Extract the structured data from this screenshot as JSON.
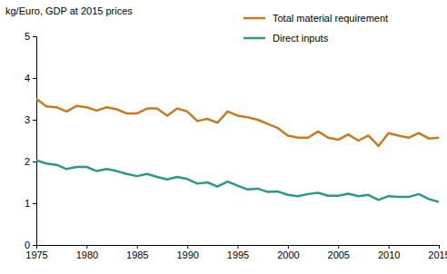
{
  "chart_data": {
    "type": "line",
    "ylabel": "kg/Euro, GDP at 2015 prices",
    "x": [
      1975,
      1976,
      1977,
      1978,
      1979,
      1980,
      1981,
      1982,
      1983,
      1984,
      1985,
      1986,
      1987,
      1988,
      1989,
      1990,
      1991,
      1992,
      1993,
      1994,
      1995,
      1996,
      1997,
      1998,
      1999,
      2000,
      2001,
      2002,
      2003,
      2004,
      2005,
      2006,
      2007,
      2008,
      2009,
      2010,
      2011,
      2012,
      2013,
      2014,
      2015
    ],
    "series": [
      {
        "name": "Total material requirement",
        "color": "#c97a1e",
        "values": [
          3.5,
          3.32,
          3.3,
          3.2,
          3.33,
          3.3,
          3.22,
          3.3,
          3.25,
          3.15,
          3.15,
          3.27,
          3.27,
          3.1,
          3.27,
          3.2,
          2.97,
          3.02,
          2.93,
          3.2,
          3.1,
          3.06,
          3.0,
          2.9,
          2.8,
          2.62,
          2.57,
          2.57,
          2.72,
          2.57,
          2.52,
          2.65,
          2.5,
          2.62,
          2.37,
          2.68,
          2.62,
          2.57,
          2.68,
          2.55,
          2.57
        ]
      },
      {
        "name": "Direct inputs",
        "color": "#2a9a88",
        "values": [
          2.03,
          1.95,
          1.92,
          1.82,
          1.87,
          1.87,
          1.77,
          1.82,
          1.77,
          1.7,
          1.65,
          1.7,
          1.63,
          1.57,
          1.63,
          1.58,
          1.47,
          1.5,
          1.4,
          1.52,
          1.42,
          1.33,
          1.35,
          1.27,
          1.28,
          1.2,
          1.17,
          1.22,
          1.25,
          1.18,
          1.18,
          1.23,
          1.17,
          1.2,
          1.08,
          1.17,
          1.15,
          1.15,
          1.22,
          1.1,
          1.03
        ]
      }
    ],
    "xlim": [
      1975,
      2015
    ],
    "xticks": [
      1975,
      1980,
      1985,
      1990,
      1995,
      2000,
      2005,
      2010,
      2015
    ],
    "ylim": [
      0,
      5
    ],
    "yticks": [
      0,
      1,
      2,
      3,
      4,
      5
    ],
    "grid": false,
    "legend": "top-right"
  }
}
